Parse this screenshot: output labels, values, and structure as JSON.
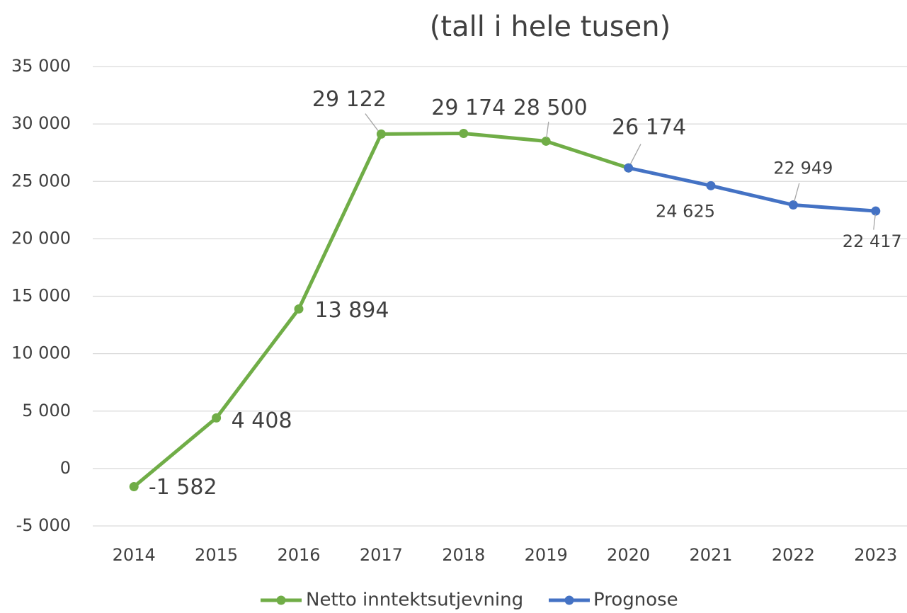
{
  "chart_data": {
    "type": "line",
    "title": "(tall i hele tusen)",
    "categories": [
      "2014",
      "2015",
      "2016",
      "2017",
      "2018",
      "2019",
      "2020",
      "2021",
      "2022",
      "2023"
    ],
    "series": [
      {
        "name": "Netto inntektsutjevning",
        "color": "#70ad47",
        "values": [
          -1582,
          4408,
          13894,
          29122,
          29174,
          28500,
          26174,
          null,
          null,
          null
        ],
        "value_labels": [
          "-1 582",
          "4 408",
          "13 894",
          "29 122",
          "29 174",
          "28 500",
          "26 174",
          null,
          null,
          null
        ]
      },
      {
        "name": "Prognose",
        "color": "#4472c4",
        "values": [
          null,
          null,
          null,
          null,
          null,
          null,
          26174,
          24625,
          22949,
          22417
        ],
        "value_labels": [
          null,
          null,
          null,
          null,
          null,
          null,
          null,
          "24 625",
          "22 949",
          "22 417"
        ]
      }
    ],
    "ylim": [
      -5000,
      35000
    ],
    "yticks": [
      {
        "value": -5000,
        "label": "-5 000"
      },
      0,
      {
        "value": 5000,
        "label": "5 000"
      },
      {
        "value": 10000,
        "label": "10 000"
      },
      {
        "value": 15000,
        "label": "15 000"
      },
      {
        "value": 20000,
        "label": "20 000"
      },
      {
        "value": 25000,
        "label": "25 000"
      },
      {
        "value": 30000,
        "label": "30 000"
      },
      {
        "value": 35000,
        "label": "35 000"
      }
    ],
    "grid": true,
    "legend": "bottom"
  }
}
